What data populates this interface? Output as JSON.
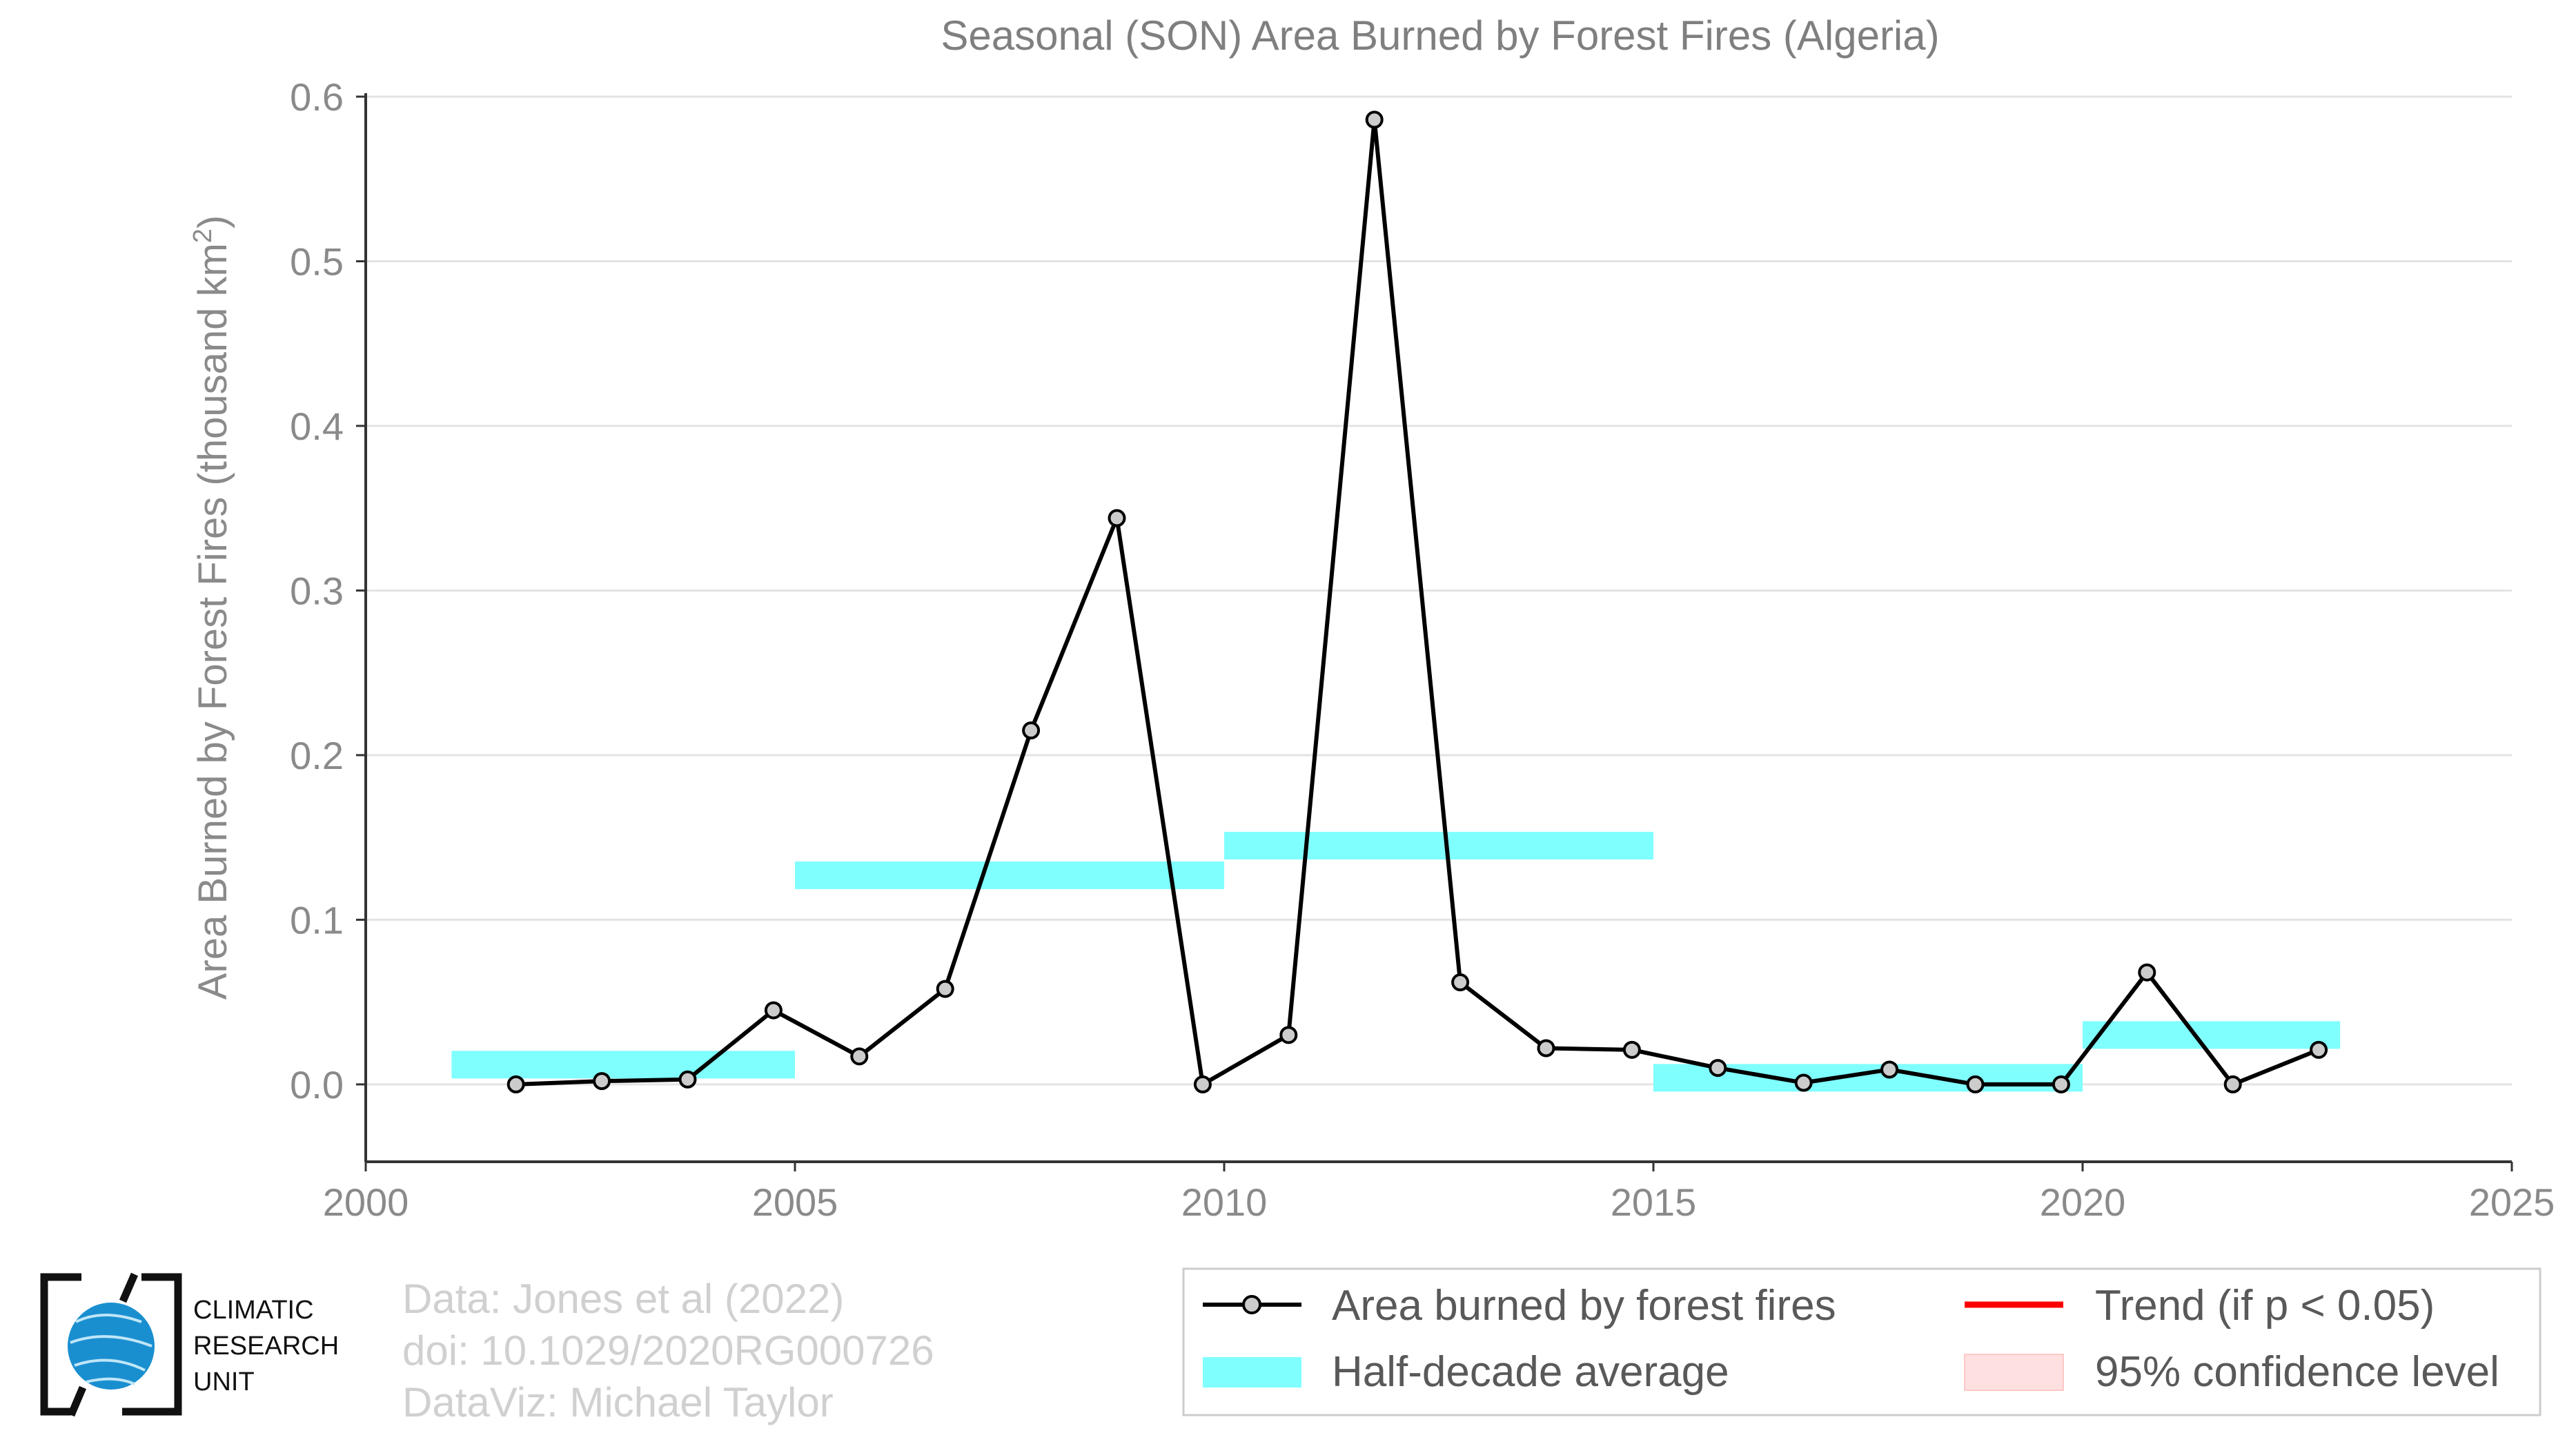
{
  "chart_data": {
    "type": "line",
    "title": "Seasonal (SON) Area Burned by Forest Fires (Algeria)",
    "xlabel": "",
    "ylabel": "Area Burned by Forest Fires (thousand km",
    "ylabel_superscript": "2",
    "ylabel_close": ")",
    "xlim": [
      2000,
      2025
    ],
    "ylim": [
      -0.047,
      0.6
    ],
    "xticks": [
      2000,
      2005,
      2010,
      2015,
      2020,
      2025
    ],
    "xtick_labels": [
      "2000",
      "2005",
      "2010",
      "2015",
      "2020",
      "2025"
    ],
    "yticks": [
      0.0,
      0.1,
      0.2,
      0.3,
      0.4,
      0.5,
      0.6
    ],
    "ytick_labels": [
      "0.0",
      "0.1",
      "0.2",
      "0.3",
      "0.4",
      "0.5",
      "0.6"
    ],
    "grid": true,
    "legend_placement": "bottom-right",
    "series": [
      {
        "name": "Area burned by forest fires",
        "color": "#000000",
        "marker_fill": "#cccccc",
        "x": [
          2001.75,
          2002.75,
          2003.75,
          2004.75,
          2005.75,
          2006.75,
          2007.75,
          2008.75,
          2009.75,
          2010.75,
          2011.75,
          2012.75,
          2013.75,
          2014.75,
          2015.75,
          2016.75,
          2017.75,
          2018.75,
          2019.75,
          2020.75,
          2021.75,
          2022.75
        ],
        "y": [
          0.0,
          0.002,
          0.003,
          0.045,
          0.017,
          0.058,
          0.215,
          0.344,
          0.0,
          0.03,
          0.586,
          0.062,
          0.022,
          0.021,
          0.01,
          0.001,
          0.009,
          0.0,
          0.0,
          0.068,
          0.0,
          0.021
        ]
      }
    ],
    "half_decade_average": {
      "name": "Half-decade average",
      "color": "#80ffff",
      "segments": [
        {
          "x0": 2001,
          "x1": 2005,
          "y": 0.012
        },
        {
          "x0": 2005,
          "x1": 2010,
          "y": 0.127
        },
        {
          "x0": 2010,
          "x1": 2015,
          "y": 0.145
        },
        {
          "x0": 2015,
          "x1": 2020,
          "y": 0.004
        },
        {
          "x0": 2020,
          "x1": 2023,
          "y": 0.03
        }
      ]
    },
    "legend": [
      {
        "label": "Area burned by forest fires",
        "kind": "line-marker",
        "color": "#000000"
      },
      {
        "label": "Half-decade average",
        "kind": "band",
        "color": "#80ffff"
      },
      {
        "label": "Trend (if p < 0.05)",
        "kind": "line",
        "color": "#ff0000"
      },
      {
        "label": "95% confidence level",
        "kind": "band",
        "color": "#ffe0e0"
      }
    ]
  },
  "credits": {
    "line1": "Data: Jones et al (2022)",
    "line2": "doi: 10.1029/2020RG000726",
    "line3": "DataViz: Michael Taylor"
  },
  "logo": {
    "line1": "CLIMATIC",
    "line2": "RESEARCH",
    "line3": "UNIT",
    "color": "#1a8fd0"
  }
}
